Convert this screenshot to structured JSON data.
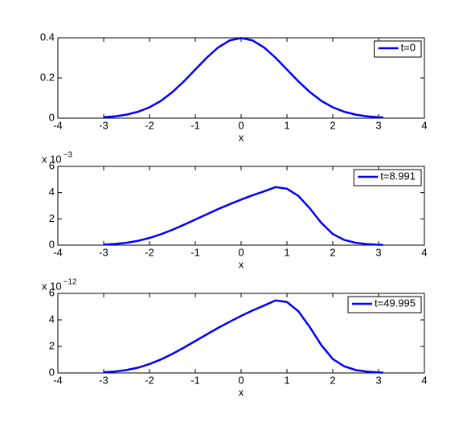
{
  "chart_data": [
    {
      "type": "line",
      "xlabel": "x",
      "x": [
        -3,
        -2.75,
        -2.5,
        -2.25,
        -2,
        -1.75,
        -1.5,
        -1.25,
        -1,
        -0.75,
        -0.5,
        -0.25,
        0,
        0.25,
        0.5,
        0.75,
        1,
        1.25,
        1.5,
        1.75,
        2,
        2.25,
        2.5,
        2.75,
        3,
        3.1
      ],
      "series": [
        {
          "name": "t=0",
          "color": "#0000ff",
          "values": [
            0.0044,
            0.0091,
            0.0175,
            0.032,
            0.054,
            0.086,
            0.13,
            0.183,
            0.242,
            0.301,
            0.352,
            0.387,
            0.399,
            0.387,
            0.352,
            0.301,
            0.242,
            0.183,
            0.13,
            0.086,
            0.054,
            0.032,
            0.0175,
            0.0091,
            0.0044,
            0.0033
          ]
        }
      ],
      "xlim": [
        -4,
        4
      ],
      "xticks": [
        -4,
        -3,
        -2,
        -1,
        0,
        1,
        2,
        3,
        4
      ],
      "ylim": [
        0,
        0.4
      ],
      "yticks": [
        0,
        0.2,
        0.4
      ],
      "legend": "upper right"
    },
    {
      "type": "line",
      "xlabel": "x",
      "y_offset_text": "x 10",
      "y_offset_exponent": "−3",
      "x": [
        -3,
        -2.75,
        -2.5,
        -2.25,
        -2,
        -1.75,
        -1.5,
        -1.25,
        -1,
        -0.75,
        -0.5,
        -0.25,
        0,
        0.25,
        0.5,
        0.75,
        1,
        1.25,
        1.5,
        1.75,
        2,
        2.25,
        2.5,
        2.75,
        3,
        3.1
      ],
      "series": [
        {
          "name": "t=8.991",
          "color": "#0000ff",
          "values": [
            0.04,
            0.09,
            0.18,
            0.33,
            0.55,
            0.83,
            1.17,
            1.55,
            1.95,
            2.35,
            2.75,
            3.12,
            3.47,
            3.8,
            4.1,
            4.42,
            4.3,
            3.75,
            2.8,
            1.7,
            0.85,
            0.4,
            0.18,
            0.08,
            0.03,
            0.02
          ]
        }
      ],
      "xlim": [
        -4,
        4
      ],
      "xticks": [
        -4,
        -3,
        -2,
        -1,
        0,
        1,
        2,
        3,
        4
      ],
      "ylim": [
        0,
        6
      ],
      "yticks": [
        0,
        2,
        4,
        6
      ],
      "legend": "upper right"
    },
    {
      "type": "line",
      "xlabel": "x",
      "y_offset_text": "x 10",
      "y_offset_exponent": "−12",
      "x": [
        -3,
        -2.75,
        -2.5,
        -2.25,
        -2,
        -1.75,
        -1.5,
        -1.25,
        -1,
        -0.75,
        -0.5,
        -0.25,
        0,
        0.25,
        0.5,
        0.75,
        1,
        1.25,
        1.5,
        1.75,
        2,
        2.25,
        2.5,
        2.75,
        3,
        3.1
      ],
      "series": [
        {
          "name": "t=49.995",
          "color": "#0000ff",
          "values": [
            0.05,
            0.11,
            0.22,
            0.4,
            0.67,
            1.02,
            1.44,
            1.91,
            2.41,
            2.91,
            3.4,
            3.86,
            4.3,
            4.71,
            5.08,
            5.47,
            5.35,
            4.65,
            3.45,
            2.1,
            1.05,
            0.5,
            0.22,
            0.1,
            0.04,
            0.03
          ]
        }
      ],
      "xlim": [
        -4,
        4
      ],
      "xticks": [
        -4,
        -3,
        -2,
        -1,
        0,
        1,
        2,
        3,
        4
      ],
      "ylim": [
        0,
        6
      ],
      "yticks": [
        0,
        2,
        4,
        6
      ],
      "legend": "upper right"
    }
  ]
}
